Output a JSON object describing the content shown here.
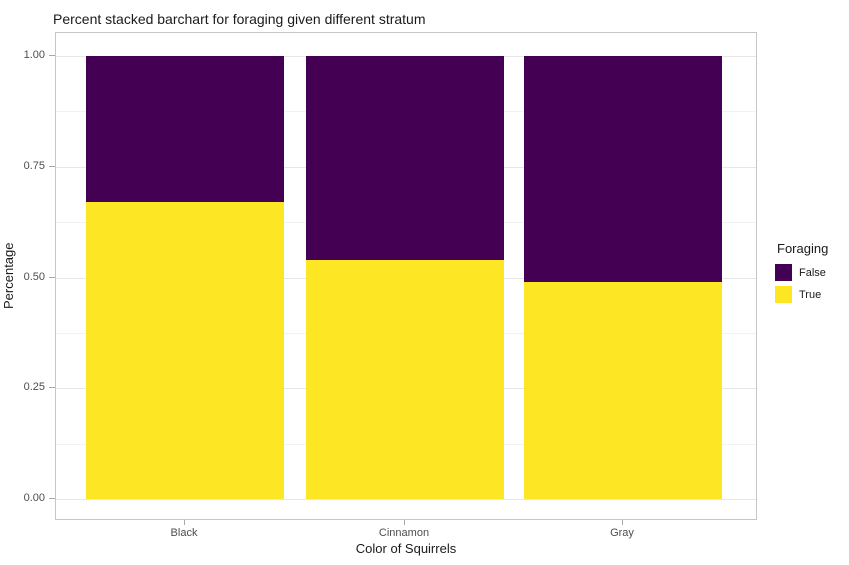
{
  "chart_data": {
    "type": "bar",
    "variant": "percent-stacked",
    "title": "Percent stacked barchart for foraging given different stratum",
    "xlabel": "Color of Squirrels",
    "ylabel": "Percentage",
    "categories": [
      "Black",
      "Cinnamon",
      "Gray"
    ],
    "series": [
      {
        "name": "False",
        "color": "#440154",
        "values": [
          0.33,
          0.46,
          0.51
        ]
      },
      {
        "name": "True",
        "color": "#fde725",
        "values": [
          0.67,
          0.54,
          0.49
        ]
      }
    ],
    "stack_order_bottom_to_top": [
      "True",
      "False"
    ],
    "ylim": [
      0,
      1
    ],
    "y_ticks": [
      {
        "label": "0.00",
        "value": 0
      },
      {
        "label": "0.25",
        "value": 0.25
      },
      {
        "label": "0.50",
        "value": 0.5
      },
      {
        "label": "0.75",
        "value": 0.75
      },
      {
        "label": "1.00",
        "value": 1
      }
    ],
    "y_minor_ticks": [
      0.125,
      0.375,
      0.625,
      0.875
    ],
    "legend": {
      "title": "Foraging",
      "position": "right",
      "entries": [
        "False",
        "True"
      ]
    },
    "grid": true,
    "colors": {
      "background": "#ffffff",
      "panel_border": "#c6c6c6",
      "grid_major": "#e6e6e6",
      "grid_minor": "#f2f2f2",
      "tick_mark": "#a8a8a8",
      "tick_label": "#4d4d4d",
      "text": "#1a1a1a"
    }
  }
}
